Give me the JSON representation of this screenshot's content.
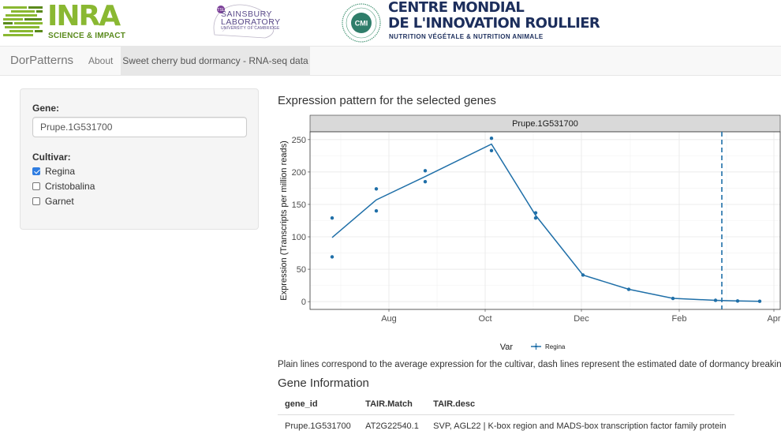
{
  "banner": {
    "inra": {
      "word": "INRA",
      "tagline": "SCIENCE & IMPACT"
    },
    "sainsbury": {
      "line1": "SAINSBURY",
      "line2": "LABORATORY",
      "line3": "UNIVERSITY OF CAMBRIDGE"
    },
    "cmi": {
      "badge": "CMI",
      "title_line1": "CENTRE MONDIAL",
      "title_line2": "DE L'INNOVATION ROULLIER",
      "subtitle": "NUTRITION VÉGÉTALE & NUTRITION ANIMALE"
    }
  },
  "navbar": {
    "brand": "DorPatterns",
    "items": [
      {
        "label": "About",
        "active": false
      },
      {
        "label": "Sweet cherry bud dormancy - RNA-seq data",
        "active": true
      }
    ]
  },
  "sidebar": {
    "gene_label": "Gene:",
    "gene_value": "Prupe.1G531700",
    "cultivar_label": "Cultivar:",
    "cultivars": [
      {
        "label": "Regina",
        "checked": true
      },
      {
        "label": "Cristobalina",
        "checked": false
      },
      {
        "label": "Garnet",
        "checked": false
      }
    ]
  },
  "main": {
    "plot_title": "Expression pattern for the selected genes",
    "note": "Plain lines correspond to the average expression for the cultivar, dash lines represent the estimated date of dormancy breaking.",
    "gene_info_title": "Gene Information",
    "table": {
      "columns": [
        "gene_id",
        "TAIR.Match",
        "TAIR.desc"
      ],
      "rows": [
        [
          "Prupe.1G531700",
          "AT2G22540.1",
          "SVP, AGL22 | K-box region and MADS-box transcription factor family protein"
        ]
      ]
    }
  },
  "colors": {
    "series": "#1f6fa8",
    "panel_strip": "#d9d9d9",
    "inra_green": "#8ab832",
    "cmi_navy": "#1c2e5c"
  },
  "chart_data": {
    "type": "line",
    "facet_title": "Prupe.1G531700",
    "xlabel": "",
    "ylabel": "Expression (Transcripts per million reads)",
    "x_ticks": [
      "Aug",
      "Oct",
      "Dec",
      "Feb",
      "Apr"
    ],
    "y_ticks": [
      0,
      50,
      100,
      150,
      200,
      250
    ],
    "ylim": [
      -12,
      262
    ],
    "xlim": [
      "2015-06-12",
      "2016-04-05"
    ],
    "grid": true,
    "legend_title": "Var",
    "legend_position": "bottom",
    "series": [
      {
        "name": "Regina",
        "x": [
          "2015-06-26",
          "2015-07-24",
          "2015-08-24",
          "2015-10-05",
          "2015-11-02",
          "2015-12-02",
          "2015-12-31",
          "2016-01-28",
          "2016-02-24",
          "2016-03-09",
          "2016-03-23"
        ],
        "mean": [
          99,
          157,
          193,
          243,
          133,
          41,
          19,
          5,
          2,
          1,
          0.5
        ]
      }
    ],
    "points": [
      {
        "x": "2015-06-26",
        "y": 129
      },
      {
        "x": "2015-06-26",
        "y": 69
      },
      {
        "x": "2015-07-24",
        "y": 174
      },
      {
        "x": "2015-07-24",
        "y": 140
      },
      {
        "x": "2015-08-24",
        "y": 202
      },
      {
        "x": "2015-08-24",
        "y": 185
      },
      {
        "x": "2015-10-05",
        "y": 252
      },
      {
        "x": "2015-10-05",
        "y": 233
      },
      {
        "x": "2015-11-02",
        "y": 137
      },
      {
        "x": "2015-11-02",
        "y": 129
      },
      {
        "x": "2015-12-02",
        "y": 41
      },
      {
        "x": "2015-12-31",
        "y": 19
      },
      {
        "x": "2016-01-28",
        "y": 5
      },
      {
        "x": "2016-02-24",
        "y": 2
      },
      {
        "x": "2016-03-09",
        "y": 1
      },
      {
        "x": "2016-03-23",
        "y": 0.5
      }
    ],
    "dormancy_break": "2016-02-28"
  }
}
